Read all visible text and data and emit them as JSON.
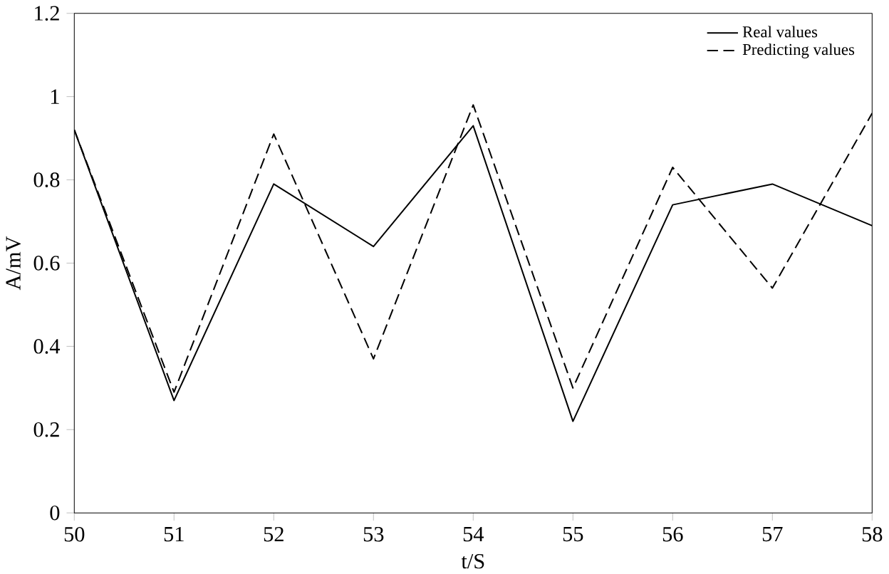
{
  "chart_data": {
    "type": "line",
    "xlabel": "t/S",
    "ylabel": "A/mV",
    "x": [
      50,
      51,
      52,
      53,
      54,
      55,
      56,
      57,
      58
    ],
    "series": [
      {
        "name": "Real values",
        "color": "#000000",
        "line_style": "solid",
        "values": [
          0.92,
          0.27,
          0.79,
          0.64,
          0.93,
          0.22,
          0.74,
          0.79,
          0.69
        ]
      },
      {
        "name": "Predicting values",
        "color": "#000000",
        "line_style": "dashed",
        "values": [
          0.92,
          0.29,
          0.91,
          0.37,
          0.98,
          0.3,
          0.83,
          0.54,
          0.96
        ]
      }
    ],
    "xlim": [
      50,
      58
    ],
    "ylim": [
      0,
      1.2
    ],
    "xticks": [
      50,
      51,
      52,
      53,
      54,
      55,
      56,
      57,
      58
    ],
    "yticks": [
      0,
      0.2,
      0.4,
      0.6,
      0.8,
      1,
      1.2
    ],
    "legend": "top right",
    "marker": "none",
    "grid": false
  }
}
